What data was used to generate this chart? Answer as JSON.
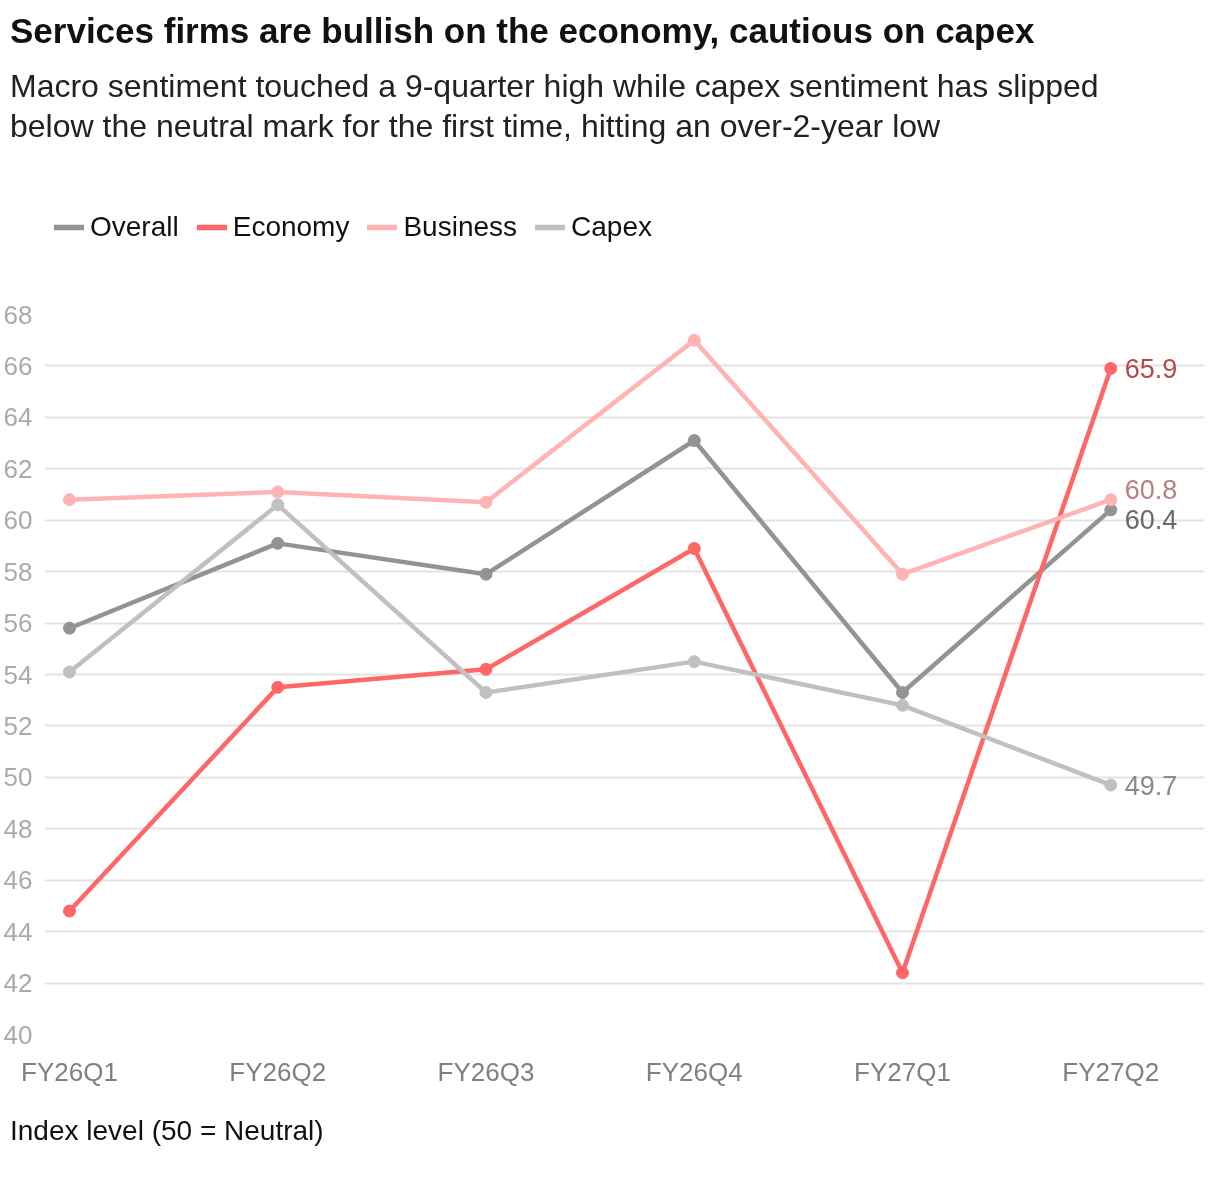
{
  "chart_data": {
    "type": "line",
    "title": "Services firms are bullish on the economy, cautious on capex",
    "subtitle": "Macro sentiment touched a 9-quarter high while capex sentiment has slipped below the neutral mark for the first time, hitting an over-2-year low",
    "categories": [
      "FY26Q1",
      "FY26Q2",
      "FY26Q3",
      "FY26Q4",
      "FY27Q1",
      "FY27Q2"
    ],
    "series": [
      {
        "name": "Overall",
        "color": "#939393",
        "values": [
          55.8,
          59.1,
          57.9,
          63.1,
          53.3,
          60.4
        ],
        "value_labels": [
          null,
          null,
          null,
          null,
          null,
          "60.4"
        ]
      },
      {
        "name": "Economy",
        "color": "#ff6666",
        "values": [
          44.8,
          53.5,
          54.2,
          58.9,
          42.4,
          65.9
        ],
        "value_labels": [
          null,
          null,
          null,
          null,
          null,
          "65.9"
        ]
      },
      {
        "name": "Business",
        "color": "#ffb3b3",
        "values": [
          60.8,
          61.1,
          60.7,
          67.0,
          57.9,
          60.8
        ],
        "value_labels": [
          null,
          null,
          null,
          null,
          null,
          "60.8"
        ]
      },
      {
        "name": "Capex",
        "color": "#c0c0c0",
        "values": [
          54.1,
          60.6,
          53.3,
          54.5,
          52.8,
          49.7
        ],
        "value_labels": [
          null,
          null,
          null,
          null,
          null,
          "49.7"
        ]
      }
    ],
    "ylim": [
      40,
      68
    ],
    "yticks": [
      40,
      42,
      44,
      46,
      48,
      50,
      52,
      54,
      56,
      58,
      60,
      62,
      64,
      66,
      68
    ],
    "grid": "y",
    "legend": "top left",
    "marker": "circle",
    "line_style": "solid",
    "annotations": [
      "Index level (50 = Neutral)"
    ]
  }
}
